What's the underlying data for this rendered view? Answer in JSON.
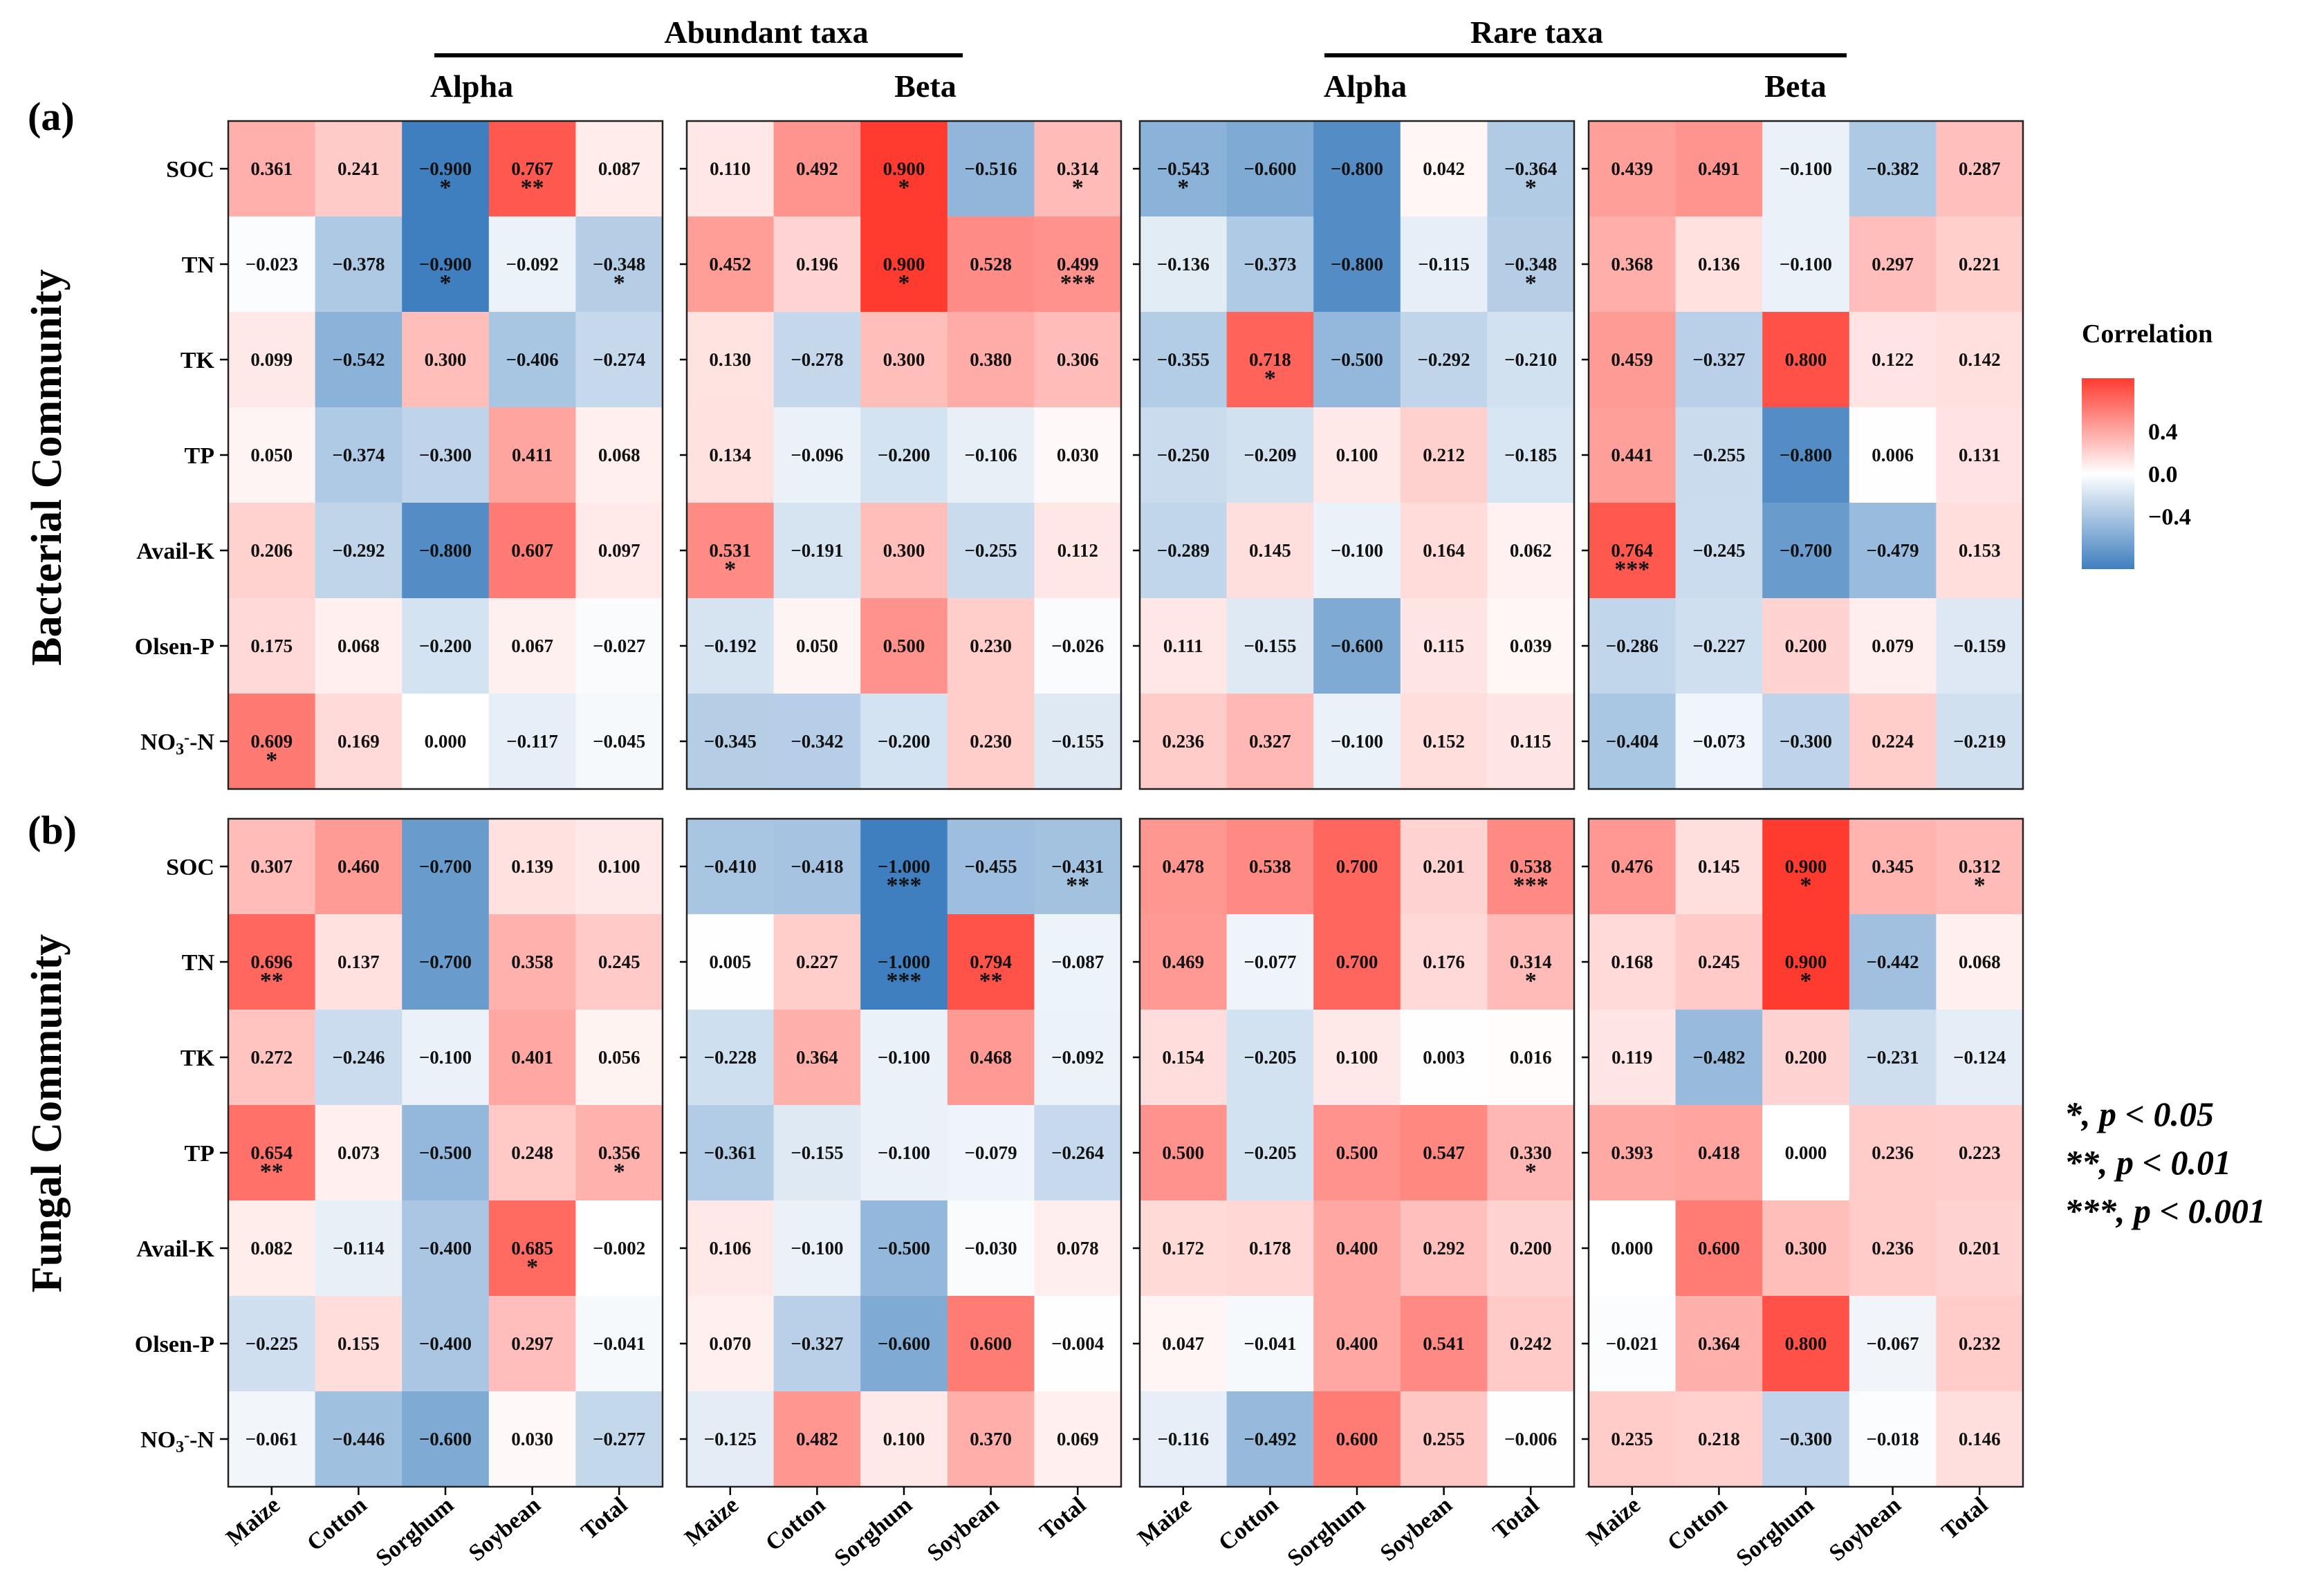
{
  "chart_data": {
    "type": "heatmap",
    "row_labels": [
      "SOC",
      "TN",
      "TK",
      "TP",
      "Avail-K",
      "Olsen-P",
      "NO3--N"
    ],
    "column_labels": [
      "Maize",
      "Cotton",
      "Sorghum",
      "Soybean",
      "Total"
    ],
    "value_range": [
      -1,
      1
    ],
    "group_titles": [
      "Abundant taxa",
      "Rare taxa"
    ],
    "subgroup_titles": [
      "Alpha",
      "Beta",
      "Alpha",
      "Beta"
    ],
    "communities": [
      "Bacterial Community",
      "Fungal Community"
    ],
    "panel_labels": [
      "(a)",
      "(b)"
    ],
    "legend": {
      "title": "Correlation",
      "ticks": [
        "0.4",
        "0.0",
        "−0.4"
      ],
      "tick_values": [
        0.4,
        0.0,
        -0.4
      ],
      "low_color": "#3f7fbf",
      "mid_color": "#ffffff",
      "high_color": "#ff3b30"
    },
    "significance_notes": [
      "*, p < 0.05",
      "**, p < 0.01",
      "***, p < 0.001"
    ],
    "panels": [
      {
        "community": "Bacterial Community",
        "taxa": "Abundant taxa",
        "diversity": "Alpha",
        "values": [
          [
            0.361,
            0.241,
            -0.9,
            0.767,
            0.087
          ],
          [
            -0.023,
            -0.378,
            -0.9,
            -0.092,
            -0.348
          ],
          [
            0.099,
            -0.542,
            0.3,
            -0.406,
            -0.274
          ],
          [
            0.05,
            -0.374,
            -0.3,
            0.411,
            0.068
          ],
          [
            0.206,
            -0.292,
            -0.8,
            0.607,
            0.097
          ],
          [
            0.175,
            0.068,
            -0.2,
            0.067,
            -0.027
          ],
          [
            0.609,
            0.169,
            0.0,
            -0.117,
            -0.045
          ]
        ],
        "stars": [
          [
            "",
            "",
            "*",
            "**",
            ""
          ],
          [
            "",
            "",
            "*",
            "",
            "*"
          ],
          [
            "",
            "",
            "",
            "",
            ""
          ],
          [
            "",
            "",
            "",
            "",
            ""
          ],
          [
            "",
            "",
            "",
            "",
            ""
          ],
          [
            "",
            "",
            "",
            "",
            ""
          ],
          [
            "*",
            "",
            "",
            "",
            ""
          ]
        ]
      },
      {
        "community": "Bacterial Community",
        "taxa": "Abundant taxa",
        "diversity": "Beta",
        "values": [
          [
            0.11,
            0.492,
            0.9,
            -0.516,
            0.314
          ],
          [
            0.452,
            0.196,
            0.9,
            0.528,
            0.499
          ],
          [
            0.13,
            -0.278,
            0.3,
            0.38,
            0.306
          ],
          [
            0.134,
            -0.096,
            -0.2,
            -0.106,
            0.03
          ],
          [
            0.531,
            -0.191,
            0.3,
            -0.255,
            0.112
          ],
          [
            -0.192,
            0.05,
            0.5,
            0.23,
            -0.026
          ],
          [
            -0.345,
            -0.342,
            -0.2,
            0.23,
            -0.155
          ]
        ],
        "stars": [
          [
            "",
            "",
            "*",
            "",
            "*"
          ],
          [
            "",
            "",
            "*",
            "",
            "***"
          ],
          [
            "",
            "",
            "",
            "",
            ""
          ],
          [
            "",
            "",
            "",
            "",
            ""
          ],
          [
            "*",
            "",
            "",
            "",
            ""
          ],
          [
            "",
            "",
            "",
            "",
            ""
          ],
          [
            "",
            "",
            "",
            "",
            ""
          ]
        ]
      },
      {
        "community": "Bacterial Community",
        "taxa": "Rare taxa",
        "diversity": "Alpha",
        "values": [
          [
            -0.543,
            -0.6,
            -0.8,
            0.042,
            -0.364
          ],
          [
            -0.136,
            -0.373,
            -0.8,
            -0.115,
            -0.348
          ],
          [
            -0.355,
            0.718,
            -0.5,
            -0.292,
            -0.21
          ],
          [
            -0.25,
            -0.209,
            0.1,
            0.212,
            -0.185
          ],
          [
            -0.289,
            0.145,
            -0.1,
            0.164,
            0.062
          ],
          [
            0.111,
            -0.155,
            -0.6,
            0.115,
            0.039
          ],
          [
            0.236,
            0.327,
            -0.1,
            0.152,
            0.115
          ]
        ],
        "stars": [
          [
            "*",
            "",
            "",
            "",
            "*"
          ],
          [
            "",
            "",
            "",
            "",
            "*"
          ],
          [
            "",
            "*",
            "",
            "",
            ""
          ],
          [
            "",
            "",
            "",
            "",
            ""
          ],
          [
            "",
            "",
            "",
            "",
            ""
          ],
          [
            "",
            "",
            "",
            "",
            ""
          ],
          [
            "",
            "",
            "",
            "",
            ""
          ]
        ]
      },
      {
        "community": "Bacterial Community",
        "taxa": "Rare taxa",
        "diversity": "Beta",
        "values": [
          [
            0.439,
            0.491,
            -0.1,
            -0.382,
            0.287
          ],
          [
            0.368,
            0.136,
            -0.1,
            0.297,
            0.221
          ],
          [
            0.459,
            -0.327,
            0.8,
            0.122,
            0.142
          ],
          [
            0.441,
            -0.255,
            -0.8,
            0.006,
            0.131
          ],
          [
            0.764,
            -0.245,
            -0.7,
            -0.479,
            0.153
          ],
          [
            -0.286,
            -0.227,
            0.2,
            0.079,
            -0.159
          ],
          [
            -0.404,
            -0.073,
            -0.3,
            0.224,
            -0.219
          ]
        ],
        "stars": [
          [
            "",
            "",
            "",
            "",
            ""
          ],
          [
            "",
            "",
            "",
            "",
            ""
          ],
          [
            "",
            "",
            "",
            "",
            ""
          ],
          [
            "",
            "",
            "",
            "",
            ""
          ],
          [
            "***",
            "",
            "",
            "",
            ""
          ],
          [
            "",
            "",
            "",
            "",
            ""
          ],
          [
            "",
            "",
            "",
            "",
            ""
          ]
        ]
      },
      {
        "community": "Fungal Community",
        "taxa": "Abundant taxa",
        "diversity": "Alpha",
        "values": [
          [
            0.307,
            0.46,
            -0.7,
            0.139,
            0.1
          ],
          [
            0.696,
            0.137,
            -0.7,
            0.358,
            0.245
          ],
          [
            0.272,
            -0.246,
            -0.1,
            0.401,
            0.056
          ],
          [
            0.654,
            0.073,
            -0.5,
            0.248,
            0.356
          ],
          [
            0.082,
            -0.114,
            -0.4,
            0.685,
            -0.002
          ],
          [
            -0.225,
            0.155,
            -0.4,
            0.297,
            -0.041
          ],
          [
            -0.061,
            -0.446,
            -0.6,
            0.03,
            -0.277
          ]
        ],
        "stars": [
          [
            "",
            "",
            "",
            "",
            ""
          ],
          [
            "**",
            "",
            "",
            "",
            ""
          ],
          [
            "",
            "",
            "",
            "",
            ""
          ],
          [
            "**",
            "",
            "",
            "",
            "*"
          ],
          [
            "",
            "",
            "",
            "*",
            ""
          ],
          [
            "",
            "",
            "",
            "",
            ""
          ],
          [
            "",
            "",
            "",
            "",
            ""
          ]
        ]
      },
      {
        "community": "Fungal Community",
        "taxa": "Abundant taxa",
        "diversity": "Beta",
        "values": [
          [
            -0.41,
            -0.418,
            -1.0,
            -0.455,
            -0.431
          ],
          [
            0.005,
            0.227,
            -1.0,
            0.794,
            -0.087
          ],
          [
            -0.228,
            0.364,
            -0.1,
            0.468,
            -0.092
          ],
          [
            -0.361,
            -0.155,
            -0.1,
            -0.079,
            -0.264
          ],
          [
            0.106,
            -0.1,
            -0.5,
            -0.03,
            0.078
          ],
          [
            0.07,
            -0.327,
            -0.6,
            0.6,
            -0.004
          ],
          [
            -0.125,
            0.482,
            0.1,
            0.37,
            0.069
          ]
        ],
        "stars": [
          [
            "",
            "",
            "***",
            "",
            "**"
          ],
          [
            "",
            "",
            "***",
            "**",
            ""
          ],
          [
            "",
            "",
            "",
            "",
            ""
          ],
          [
            "",
            "",
            "",
            "",
            ""
          ],
          [
            "",
            "",
            "",
            "",
            ""
          ],
          [
            "",
            "",
            "",
            "",
            ""
          ],
          [
            "",
            "",
            "",
            "",
            ""
          ]
        ]
      },
      {
        "community": "Fungal Community",
        "taxa": "Rare taxa",
        "diversity": "Alpha",
        "values": [
          [
            0.478,
            0.538,
            0.7,
            0.201,
            0.538
          ],
          [
            0.469,
            -0.077,
            0.7,
            0.176,
            0.314
          ],
          [
            0.154,
            -0.205,
            0.1,
            0.003,
            0.016
          ],
          [
            0.5,
            -0.205,
            0.5,
            0.547,
            0.33
          ],
          [
            0.172,
            0.178,
            0.4,
            0.292,
            0.2
          ],
          [
            0.047,
            -0.041,
            0.4,
            0.541,
            0.242
          ],
          [
            -0.116,
            -0.492,
            0.6,
            0.255,
            -0.006
          ]
        ],
        "stars": [
          [
            "",
            "",
            "",
            "",
            "***"
          ],
          [
            "",
            "",
            "",
            "",
            "*"
          ],
          [
            "",
            "",
            "",
            "",
            ""
          ],
          [
            "",
            "",
            "",
            "",
            "*"
          ],
          [
            "",
            "",
            "",
            "",
            ""
          ],
          [
            "",
            "",
            "",
            "",
            ""
          ],
          [
            "",
            "",
            "",
            "",
            ""
          ]
        ]
      },
      {
        "community": "Fungal Community",
        "taxa": "Rare taxa",
        "diversity": "Beta",
        "values": [
          [
            0.476,
            0.145,
            0.9,
            0.345,
            0.312
          ],
          [
            0.168,
            0.245,
            0.9,
            -0.442,
            0.068
          ],
          [
            0.119,
            -0.482,
            0.2,
            -0.231,
            -0.124
          ],
          [
            0.393,
            0.418,
            0.0,
            0.236,
            0.223
          ],
          [
            0.0,
            0.6,
            0.3,
            0.236,
            0.201
          ],
          [
            -0.021,
            0.364,
            0.8,
            -0.067,
            0.232
          ],
          [
            0.235,
            0.218,
            -0.3,
            -0.018,
            0.146
          ]
        ],
        "stars": [
          [
            "",
            "",
            "*",
            "",
            "*"
          ],
          [
            "",
            "",
            "*",
            "",
            ""
          ],
          [
            "",
            "",
            "",
            "",
            ""
          ],
          [
            "",
            "",
            "",
            "",
            ""
          ],
          [
            "",
            "",
            "",
            "",
            ""
          ],
          [
            "",
            "",
            "",
            "",
            ""
          ],
          [
            "",
            "",
            "",
            "",
            ""
          ]
        ]
      }
    ]
  }
}
